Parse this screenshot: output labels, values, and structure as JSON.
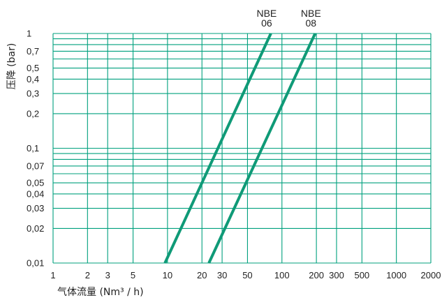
{
  "chart_data": {
    "type": "line",
    "title": "",
    "xlabel": "气体流量 (Nm³ / h)",
    "ylabel": "压降 (bar)",
    "x_scale": "log",
    "y_scale": "log",
    "xlim": [
      1,
      2000
    ],
    "ylim": [
      0.01,
      1
    ],
    "grid": true,
    "grid_color": "#00a07e",
    "line_color": "#0f9a77",
    "x_ticks": [
      {
        "value": 1,
        "label": "1"
      },
      {
        "value": 2,
        "label": "2"
      },
      {
        "value": 3,
        "label": "3"
      },
      {
        "value": 5,
        "label": "5"
      },
      {
        "value": 10,
        "label": "10"
      },
      {
        "value": 20,
        "label": "20"
      },
      {
        "value": 30,
        "label": "30"
      },
      {
        "value": 50,
        "label": "50"
      },
      {
        "value": 100,
        "label": "100"
      },
      {
        "value": 200,
        "label": "200"
      },
      {
        "value": 300,
        "label": "300"
      },
      {
        "value": 500,
        "label": "500"
      },
      {
        "value": 1000,
        "label": "1000"
      },
      {
        "value": 2000,
        "label": "2000"
      }
    ],
    "y_ticks": [
      {
        "value": 1,
        "label": "1"
      },
      {
        "value": 0.7,
        "label": "0,7"
      },
      {
        "value": 0.5,
        "label": "0,5"
      },
      {
        "value": 0.4,
        "label": "0,4"
      },
      {
        "value": 0.3,
        "label": "0,3"
      },
      {
        "value": 0.2,
        "label": "0,2"
      },
      {
        "value": 0.1,
        "label": "0,1"
      },
      {
        "value": 0.07,
        "label": "0,07"
      },
      {
        "value": 0.05,
        "label": "0,05"
      },
      {
        "value": 0.04,
        "label": "0,04"
      },
      {
        "value": 0.03,
        "label": "0,03"
      },
      {
        "value": 0.02,
        "label": "0,02"
      },
      {
        "value": 0.01,
        "label": "0,01"
      }
    ],
    "x_grid_values": [
      1,
      2,
      3,
      5,
      10,
      20,
      30,
      50,
      100,
      200,
      300,
      500,
      1000,
      2000
    ],
    "y_grid_values": [
      0.01,
      0.02,
      0.03,
      0.04,
      0.05,
      0.06,
      0.07,
      0.08,
      0.09,
      0.1,
      0.2,
      0.3,
      0.4,
      0.5,
      0.6,
      0.7,
      0.8,
      0.9,
      1
    ],
    "series": [
      {
        "label_lines": [
          "NBE",
          "06"
        ],
        "points": [
          [
            9.5,
            0.01
          ],
          [
            80,
            1
          ]
        ]
      },
      {
        "label_lines": [
          "NBE",
          "08"
        ],
        "points": [
          [
            23,
            0.01
          ],
          [
            195,
            1
          ]
        ]
      }
    ]
  }
}
